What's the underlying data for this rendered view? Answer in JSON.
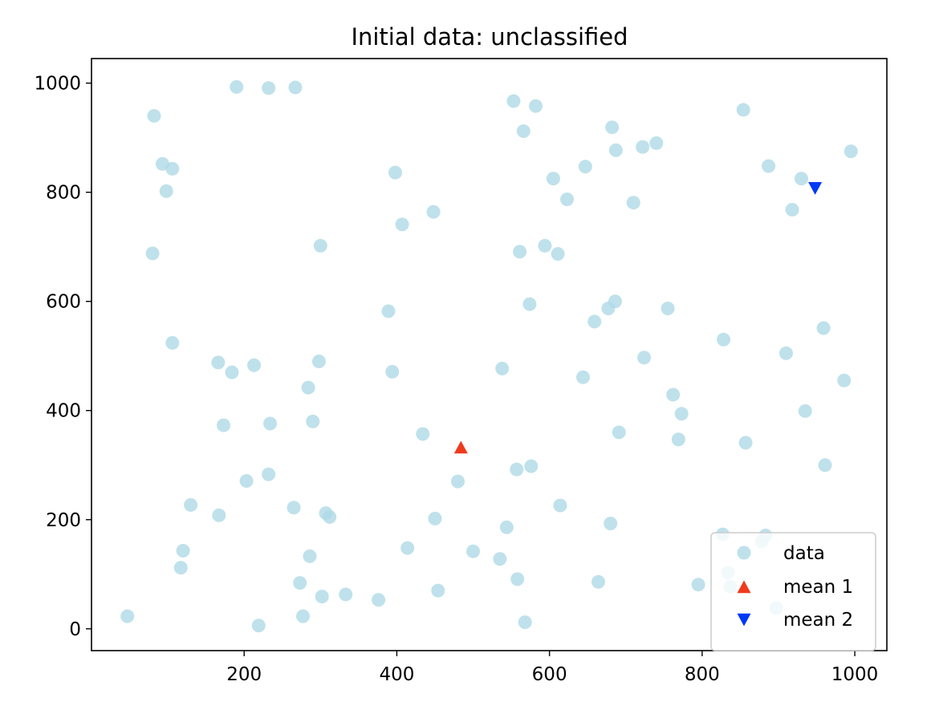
{
  "chart_data": {
    "type": "scatter",
    "title": "Initial data: unclassified",
    "xlabel": "",
    "ylabel": "",
    "xlim": [
      0,
      1042
    ],
    "ylim": [
      -40,
      1045
    ],
    "xticks": [
      200,
      400,
      600,
      800,
      1000
    ],
    "yticks": [
      0,
      200,
      400,
      600,
      800,
      1000
    ],
    "grid": false,
    "legend_position": "bottom-right",
    "legend": [
      {
        "label": "data",
        "marker": "circle",
        "color": "#add8e6"
      },
      {
        "label": "mean 1",
        "marker": "triangle-up",
        "color": "#f03a1e"
      },
      {
        "label": "mean 2",
        "marker": "triangle-down",
        "color": "#0038f5"
      }
    ],
    "series": [
      {
        "name": "data",
        "color": "#add8e6",
        "points": [
          [
            47,
            23
          ],
          [
            80,
            688
          ],
          [
            82,
            940
          ],
          [
            93,
            852
          ],
          [
            98,
            802
          ],
          [
            106,
            843
          ],
          [
            106,
            524
          ],
          [
            117,
            112
          ],
          [
            120,
            143
          ],
          [
            130,
            227
          ],
          [
            166,
            488
          ],
          [
            167,
            208
          ],
          [
            173,
            373
          ],
          [
            184,
            470
          ],
          [
            190,
            993
          ],
          [
            203,
            271
          ],
          [
            213,
            483
          ],
          [
            219,
            6
          ],
          [
            232,
            991
          ],
          [
            232,
            283
          ],
          [
            234,
            376
          ],
          [
            265,
            222
          ],
          [
            267,
            992
          ],
          [
            273,
            84
          ],
          [
            277,
            23
          ],
          [
            284,
            442
          ],
          [
            286,
            133
          ],
          [
            290,
            380
          ],
          [
            298,
            490
          ],
          [
            300,
            702
          ],
          [
            302,
            59
          ],
          [
            307,
            212
          ],
          [
            312,
            205
          ],
          [
            333,
            63
          ],
          [
            376,
            53
          ],
          [
            389,
            582
          ],
          [
            394,
            471
          ],
          [
            398,
            836
          ],
          [
            407,
            741
          ],
          [
            414,
            148
          ],
          [
            434,
            357
          ],
          [
            448,
            764
          ],
          [
            450,
            202
          ],
          [
            454,
            70
          ],
          [
            480,
            270
          ],
          [
            500,
            142
          ],
          [
            535,
            128
          ],
          [
            538,
            477
          ],
          [
            544,
            186
          ],
          [
            553,
            967
          ],
          [
            557,
            292
          ],
          [
            558,
            91
          ],
          [
            561,
            691
          ],
          [
            566,
            912
          ],
          [
            568,
            12
          ],
          [
            574,
            595
          ],
          [
            576,
            298
          ],
          [
            582,
            958
          ],
          [
            594,
            702
          ],
          [
            605,
            825
          ],
          [
            611,
            687
          ],
          [
            614,
            226
          ],
          [
            623,
            787
          ],
          [
            644,
            461
          ],
          [
            647,
            847
          ],
          [
            659,
            563
          ],
          [
            664,
            86
          ],
          [
            677,
            587
          ],
          [
            680,
            193
          ],
          [
            682,
            919
          ],
          [
            686,
            600
          ],
          [
            687,
            877
          ],
          [
            691,
            360
          ],
          [
            710,
            781
          ],
          [
            722,
            883
          ],
          [
            724,
            497
          ],
          [
            740,
            890
          ],
          [
            755,
            587
          ],
          [
            762,
            429
          ],
          [
            769,
            347
          ],
          [
            773,
            394
          ],
          [
            795,
            81
          ],
          [
            827,
            173
          ],
          [
            828,
            530
          ],
          [
            834,
            103
          ],
          [
            837,
            77
          ],
          [
            854,
            951
          ],
          [
            857,
            341
          ],
          [
            878,
            160
          ],
          [
            883,
            171
          ],
          [
            887,
            848
          ],
          [
            897,
            38
          ],
          [
            910,
            505
          ],
          [
            918,
            768
          ],
          [
            930,
            825
          ],
          [
            935,
            399
          ],
          [
            959,
            551
          ],
          [
            961,
            300
          ],
          [
            986,
            455
          ],
          [
            995,
            875
          ]
        ]
      },
      {
        "name": "mean 1",
        "color": "#f03a1e",
        "marker": "triangle-up",
        "points": [
          [
            484,
            332
          ]
        ]
      },
      {
        "name": "mean 2",
        "color": "#0038f5",
        "marker": "triangle-down",
        "points": [
          [
            948,
            808
          ]
        ]
      }
    ]
  }
}
